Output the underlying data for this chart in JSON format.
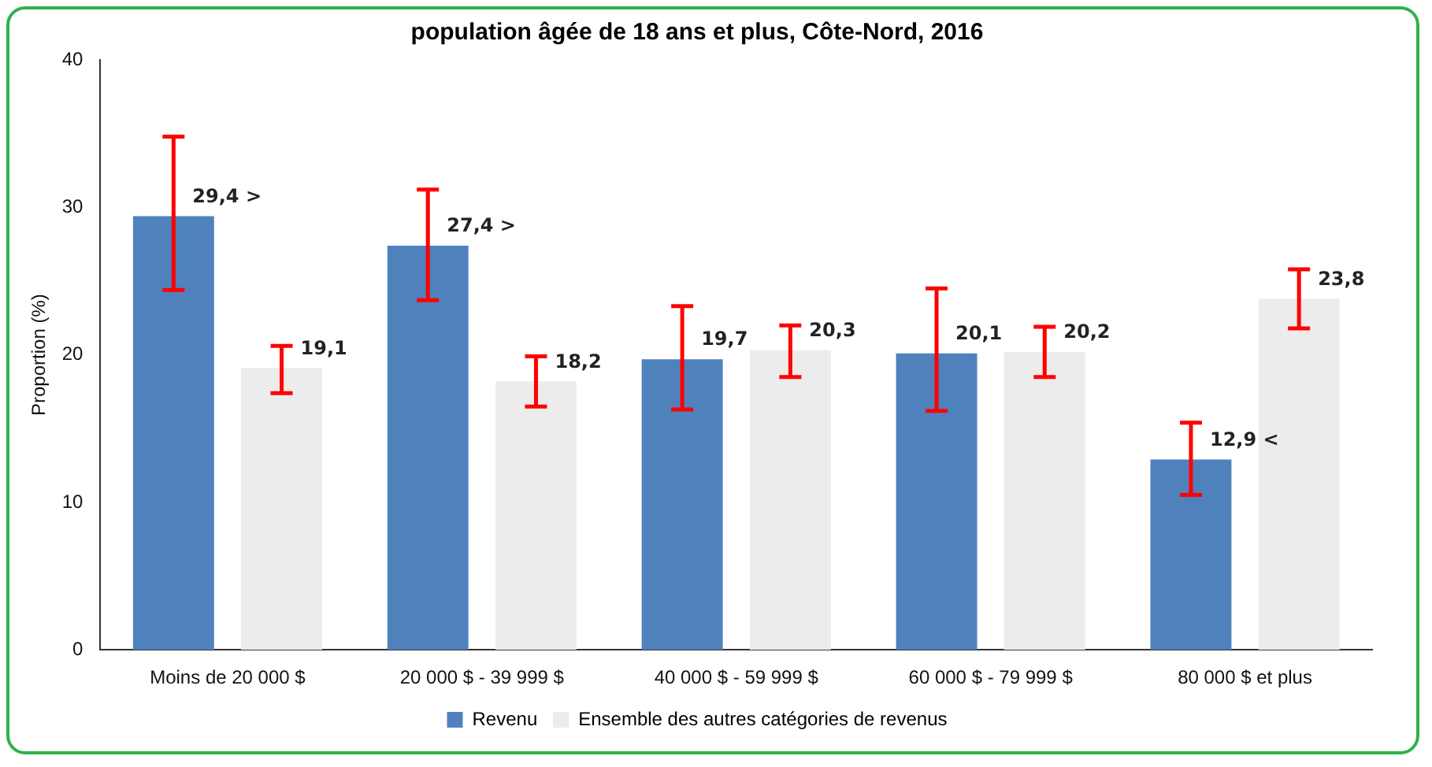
{
  "chart_data": {
    "type": "bar",
    "title": "population âgée de 18 ans et plus, Côte-Nord, 2016",
    "ylabel": "Proportion (%)",
    "categories": [
      "Moins de 20 000 $",
      "20 000 $ - 39 999 $",
      "40 000 $ - 59 999 $",
      "60 000 $ - 79 999 $",
      "80 000 $ et plus"
    ],
    "series": [
      {
        "name": "Revenu",
        "color": "#4f81bd",
        "values": [
          29.4,
          27.4,
          19.7,
          20.1,
          12.9
        ],
        "errors": [
          [
            24.4,
            34.8
          ],
          [
            23.7,
            31.2
          ],
          [
            16.3,
            23.3
          ],
          [
            16.2,
            24.5
          ],
          [
            10.5,
            15.4
          ]
        ],
        "value_labels": [
          "29,4 >",
          "27,4 >",
          "19,7",
          "20,1",
          "12,9 <"
        ]
      },
      {
        "name": "Ensemble des autres catégories de revenus",
        "color": "#ececec",
        "values": [
          19.1,
          18.2,
          20.3,
          20.2,
          23.8
        ],
        "errors": [
          [
            17.4,
            20.6
          ],
          [
            16.5,
            19.9
          ],
          [
            18.5,
            22.0
          ],
          [
            18.5,
            21.9
          ],
          [
            21.8,
            25.8
          ]
        ],
        "value_labels": [
          "19,1",
          "18,2",
          "20,3",
          "20,2",
          "23,8"
        ]
      }
    ],
    "ylim": [
      0,
      40
    ],
    "yticks": [
      0,
      10,
      20,
      30,
      40
    ],
    "grid": false,
    "legend": "bottom"
  }
}
